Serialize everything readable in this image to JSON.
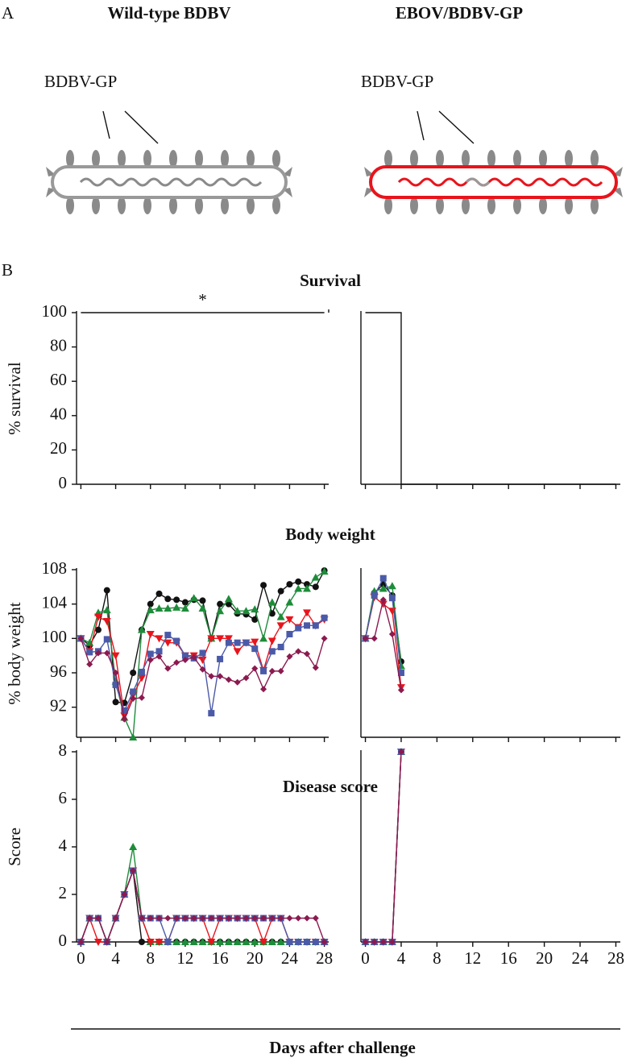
{
  "panel_a": {
    "label": "A",
    "virus_1": {
      "title": "Wild-type BDBV",
      "glycoprotein": "BDBV-GP"
    },
    "virus_2": {
      "title": "EBOV/BDBV-GP",
      "glycoprotein": "BDBV-GP"
    }
  },
  "panel_b": {
    "label": "B"
  },
  "chart_data": [
    {
      "type": "line",
      "title": "Survival",
      "ylabel": "% survival",
      "annotation": "*",
      "xlim": [
        -0.5,
        28.5
      ],
      "xticks": [
        0,
        4,
        8,
        12,
        16,
        20,
        24,
        28
      ],
      "ylim": [
        0,
        100
      ],
      "yticks": [
        0,
        20,
        40,
        60,
        80,
        100
      ],
      "grid": false,
      "panels": [
        {
          "series": [
            {
              "color": "#111111",
              "x": [
                0,
                28
              ],
              "values": [
                100,
                100
              ]
            }
          ]
        },
        {
          "series": [
            {
              "color": "#111111",
              "x": [
                0,
                4,
                4,
                28
              ],
              "values": [
                100,
                100,
                0,
                0
              ]
            }
          ]
        }
      ]
    },
    {
      "type": "line",
      "title": "Body weight",
      "ylabel": "% body weight",
      "xlim": [
        -0.5,
        28.5
      ],
      "xticks": [
        0,
        4,
        8,
        12,
        16,
        20,
        24,
        28
      ],
      "ylim": [
        88.5,
        108
      ],
      "yticks": [
        92,
        96,
        100,
        104,
        108
      ],
      "grid": false,
      "panels": [
        {
          "series": [
            {
              "color": "#111111",
              "marker": "circle",
              "x": [
                0,
                1,
                2,
                3,
                4,
                5,
                6,
                7,
                8,
                9,
                10,
                11,
                12,
                13,
                14,
                15,
                16,
                17,
                18,
                19,
                20,
                21,
                22,
                23,
                24,
                25,
                26,
                27,
                28
              ],
              "values": [
                100,
                99.2,
                101,
                105.6,
                92.6,
                92.5,
                96,
                101,
                104,
                105.2,
                104.6,
                104.5,
                104.2,
                104.5,
                104.4,
                100,
                104,
                104,
                102.9,
                102.8,
                102.2,
                106.2,
                102.9,
                105.5,
                106.3,
                106.6,
                106.3,
                106,
                107.9
              ]
            },
            {
              "color": "#1e8c3a",
              "marker": "triangle-up",
              "x": [
                0,
                1,
                2,
                3,
                4,
                5,
                6,
                7,
                8,
                9,
                10,
                11,
                12,
                13,
                14,
                15,
                16,
                17,
                18,
                19,
                20,
                21,
                22,
                23,
                24,
                25,
                26,
                27,
                28
              ],
              "values": [
                100,
                99.5,
                103,
                103.3,
                95,
                90.8,
                88.5,
                101,
                103.3,
                103.5,
                103.5,
                103.6,
                103.5,
                104.7,
                103.5,
                100,
                103.2,
                104.6,
                103.2,
                103.2,
                103.4,
                100,
                104.2,
                102.5,
                104.2,
                105.8,
                105.8,
                107.1,
                107.8
              ]
            },
            {
              "color": "#e8141c",
              "marker": "triangle-down",
              "x": [
                0,
                1,
                2,
                3,
                4,
                5,
                6,
                7,
                8,
                9,
                10,
                11,
                12,
                13,
                14,
                15,
                16,
                17,
                18,
                19,
                20,
                21,
                22,
                23,
                24,
                25,
                26,
                27,
                28
              ],
              "values": [
                100,
                98.5,
                102.5,
                102,
                98,
                91,
                93.4,
                95.4,
                100.5,
                100,
                99.5,
                99.5,
                98,
                98,
                97.5,
                100,
                100,
                100,
                98.5,
                99.5,
                99.6,
                96.3,
                99.7,
                101.5,
                102.2,
                101.3,
                103,
                101.5,
                102.2
              ]
            },
            {
              "color": "#4b5aa8",
              "marker": "square",
              "x": [
                0,
                1,
                2,
                3,
                4,
                5,
                6,
                7,
                8,
                9,
                10,
                11,
                12,
                13,
                14,
                15,
                16,
                17,
                18,
                19,
                20,
                21,
                22,
                23,
                24,
                25,
                26,
                27,
                28
              ],
              "values": [
                100,
                98.4,
                98.5,
                99.9,
                94.6,
                91.6,
                93.8,
                96.1,
                98.2,
                98.5,
                100.4,
                99.7,
                98,
                97.7,
                98.3,
                91.3,
                97.6,
                99.5,
                99.5,
                99.5,
                98.8,
                96.2,
                98.5,
                99,
                100.5,
                101.2,
                101.5,
                101.5,
                102.4
              ]
            },
            {
              "color": "#8b1a4f",
              "marker": "diamond",
              "x": [
                0,
                1,
                2,
                3,
                4,
                5,
                6,
                7,
                8,
                9,
                10,
                11,
                12,
                13,
                14,
                15,
                16,
                17,
                18,
                19,
                20,
                21,
                22,
                23,
                24,
                25,
                26,
                27,
                28
              ],
              "values": [
                100,
                97,
                98.3,
                98.3,
                96,
                90.6,
                93,
                93.1,
                97.5,
                97.9,
                96.5,
                97.2,
                97.5,
                97.8,
                96.4,
                95.6,
                95.6,
                95.2,
                94.9,
                95.4,
                96.5,
                94.1,
                96.2,
                96.2,
                97.9,
                98.5,
                98.2,
                96.6,
                100
              ]
            }
          ]
        },
        {
          "series": [
            {
              "color": "#111111",
              "marker": "circle",
              "x": [
                0,
                1,
                2,
                3,
                4
              ],
              "values": [
                100,
                105.3,
                106.3,
                105,
                97.3
              ]
            },
            {
              "color": "#1e8c3a",
              "marker": "triangle-up",
              "x": [
                0,
                1,
                2,
                3,
                4
              ],
              "values": [
                100,
                105.5,
                105.8,
                106.1,
                96.8
              ]
            },
            {
              "color": "#e8141c",
              "marker": "triangle-down",
              "x": [
                0,
                1,
                2,
                3,
                4
              ],
              "values": [
                100,
                104.8,
                104,
                103.2,
                94.3
              ]
            },
            {
              "color": "#4b5aa8",
              "marker": "square",
              "x": [
                0,
                1,
                2,
                3,
                4
              ],
              "values": [
                100,
                105,
                107,
                104.7,
                96
              ]
            },
            {
              "color": "#8b1a4f",
              "marker": "diamond",
              "x": [
                0,
                1,
                2,
                3,
                4
              ],
              "values": [
                100,
                100,
                104.5,
                100.5,
                94
              ]
            }
          ]
        }
      ]
    },
    {
      "type": "line",
      "title": "Disease score",
      "ylabel": "Score",
      "xlabel": "Days after challenge",
      "xlim": [
        -0.5,
        28.5
      ],
      "xticks": [
        0,
        4,
        8,
        12,
        16,
        20,
        24,
        28
      ],
      "ylim": [
        0,
        8
      ],
      "yticks": [
        0,
        2,
        4,
        6,
        8
      ],
      "grid": false,
      "panels": [
        {
          "series": [
            {
              "color": "#111111",
              "marker": "circle",
              "x": [
                0,
                1,
                2,
                3,
                4,
                5,
                6,
                7,
                8,
                9,
                10,
                11,
                12,
                13,
                14,
                15,
                16,
                17,
                18,
                19,
                20,
                21,
                22,
                23,
                24,
                25,
                26,
                27,
                28
              ],
              "values": [
                0,
                1,
                1,
                0,
                1,
                2,
                3,
                0,
                0,
                0,
                0,
                0,
                0,
                0,
                0,
                0,
                0,
                0,
                0,
                0,
                0,
                0,
                0,
                0,
                0,
                0,
                0,
                0,
                0
              ]
            },
            {
              "color": "#1e8c3a",
              "marker": "triangle-up",
              "x": [
                0,
                1,
                2,
                3,
                4,
                5,
                6,
                7,
                8,
                9,
                10,
                11,
                12,
                13,
                14,
                15,
                16,
                17,
                18,
                19,
                20,
                21,
                22,
                23,
                24,
                25,
                26,
                27,
                28
              ],
              "values": [
                0,
                1,
                1,
                0,
                1,
                2,
                4,
                1,
                0,
                0,
                0,
                0,
                0,
                0,
                0,
                0,
                0,
                0,
                0,
                0,
                0,
                0,
                0,
                0,
                0,
                0,
                0,
                0,
                0
              ]
            },
            {
              "color": "#e8141c",
              "marker": "triangle-down",
              "x": [
                0,
                1,
                2,
                3,
                4,
                5,
                6,
                7,
                8,
                9,
                10,
                11,
                12,
                13,
                14,
                15,
                16,
                17,
                18,
                19,
                20,
                21,
                22,
                23,
                24,
                25,
                26,
                27,
                28
              ],
              "values": [
                0,
                1,
                0,
                0,
                1,
                2,
                3,
                1,
                0,
                0,
                0,
                1,
                1,
                1,
                1,
                0,
                1,
                1,
                1,
                1,
                1,
                0,
                1,
                1,
                0,
                0,
                0,
                0,
                0
              ]
            },
            {
              "color": "#4b5aa8",
              "marker": "square",
              "x": [
                0,
                1,
                2,
                3,
                4,
                5,
                6,
                7,
                8,
                9,
                10,
                11,
                12,
                13,
                14,
                15,
                16,
                17,
                18,
                19,
                20,
                21,
                22,
                23,
                24,
                25,
                26,
                27,
                28
              ],
              "values": [
                0,
                1,
                1,
                0,
                1,
                2,
                3,
                1,
                1,
                1,
                0,
                1,
                1,
                1,
                1,
                1,
                1,
                1,
                1,
                1,
                1,
                1,
                1,
                1,
                0,
                0,
                0,
                0,
                0
              ]
            },
            {
              "color": "#8b1a4f",
              "marker": "diamond",
              "x": [
                0,
                1,
                2,
                3,
                4,
                5,
                6,
                7,
                8,
                9,
                10,
                11,
                12,
                13,
                14,
                15,
                16,
                17,
                18,
                19,
                20,
                21,
                22,
                23,
                24,
                25,
                26,
                27,
                28
              ],
              "values": [
                0,
                1,
                1,
                0,
                1,
                2,
                3,
                1,
                1,
                1,
                1,
                1,
                1,
                1,
                1,
                1,
                1,
                1,
                1,
                1,
                1,
                1,
                1,
                1,
                1,
                1,
                1,
                1,
                0
              ]
            }
          ]
        },
        {
          "series": [
            {
              "color": "#111111",
              "marker": "circle",
              "x": [
                0,
                1,
                2,
                3,
                4
              ],
              "values": [
                0,
                0,
                0,
                0,
                8
              ]
            },
            {
              "color": "#1e8c3a",
              "marker": "triangle-up",
              "x": [
                0,
                1,
                2,
                3,
                4
              ],
              "values": [
                0,
                0,
                0,
                0,
                8
              ]
            },
            {
              "color": "#e8141c",
              "marker": "triangle-down",
              "x": [
                0,
                1,
                2,
                3,
                4
              ],
              "values": [
                0,
                0,
                0,
                0,
                8
              ]
            },
            {
              "color": "#4b5aa8",
              "marker": "square",
              "x": [
                0,
                1,
                2,
                3,
                4
              ],
              "values": [
                0,
                0,
                0,
                0,
                8
              ]
            },
            {
              "color": "#8b1a4f",
              "marker": "diamond",
              "x": [
                0,
                1,
                2,
                3,
                4
              ],
              "values": [
                0,
                0,
                0,
                0,
                8
              ]
            }
          ]
        }
      ]
    }
  ]
}
